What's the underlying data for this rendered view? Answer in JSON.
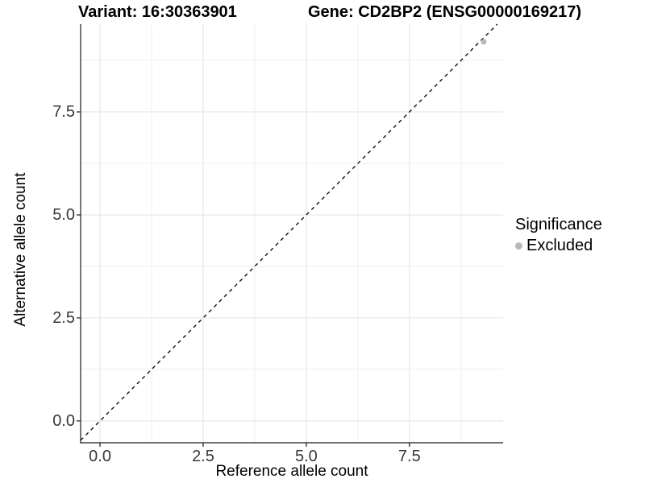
{
  "chart_data": {
    "type": "scatter",
    "titles": {
      "left": "Variant: 16:30363901",
      "right": "Gene: CD2BP2 (ENSG00000169217)"
    },
    "xlabel": "Reference allele count",
    "ylabel": "Alternative allele count",
    "xlim": [
      -0.47,
      9.77
    ],
    "ylim": [
      -0.53,
      9.63
    ],
    "x_ticks": [
      0.0,
      2.5,
      5.0,
      7.5
    ],
    "y_ticks": [
      0.0,
      2.5,
      5.0,
      7.5
    ],
    "x_tick_labels": [
      "0.0",
      "2.5",
      "5.0",
      "7.5"
    ],
    "y_tick_labels": [
      "0.0",
      "2.5",
      "5.0",
      "7.5"
    ],
    "x_minor_ticks": [
      1.25,
      3.75,
      6.25,
      8.75
    ],
    "y_minor_ticks": [
      1.25,
      3.75,
      6.25,
      8.75
    ],
    "grid": "major and minor, light grey on white panel",
    "axis_lines": "black left and bottom only",
    "reference_line": {
      "type": "identity",
      "slope": 1,
      "intercept": 0,
      "style": "dashed",
      "color": "#111111"
    },
    "series": [
      {
        "name": "Excluded",
        "color": "#b9b9b9",
        "points": [
          {
            "x": 9.3,
            "y": 9.2
          }
        ]
      }
    ],
    "legend": {
      "title": "Significance",
      "position": "right",
      "items": [
        {
          "label": "Excluded",
          "color": "#b9b9b9"
        }
      ]
    }
  },
  "theme": {
    "background": "#ffffff",
    "grid_major": "#e3e3e3",
    "grid_minor": "#efefef",
    "axis_line": "#1a1a1a",
    "tick_mark": "#1a1a1a",
    "tick_text": "#383838",
    "title_text": "#000000",
    "point_fill": "#b9b9b9",
    "dashed_line": "#111111"
  }
}
